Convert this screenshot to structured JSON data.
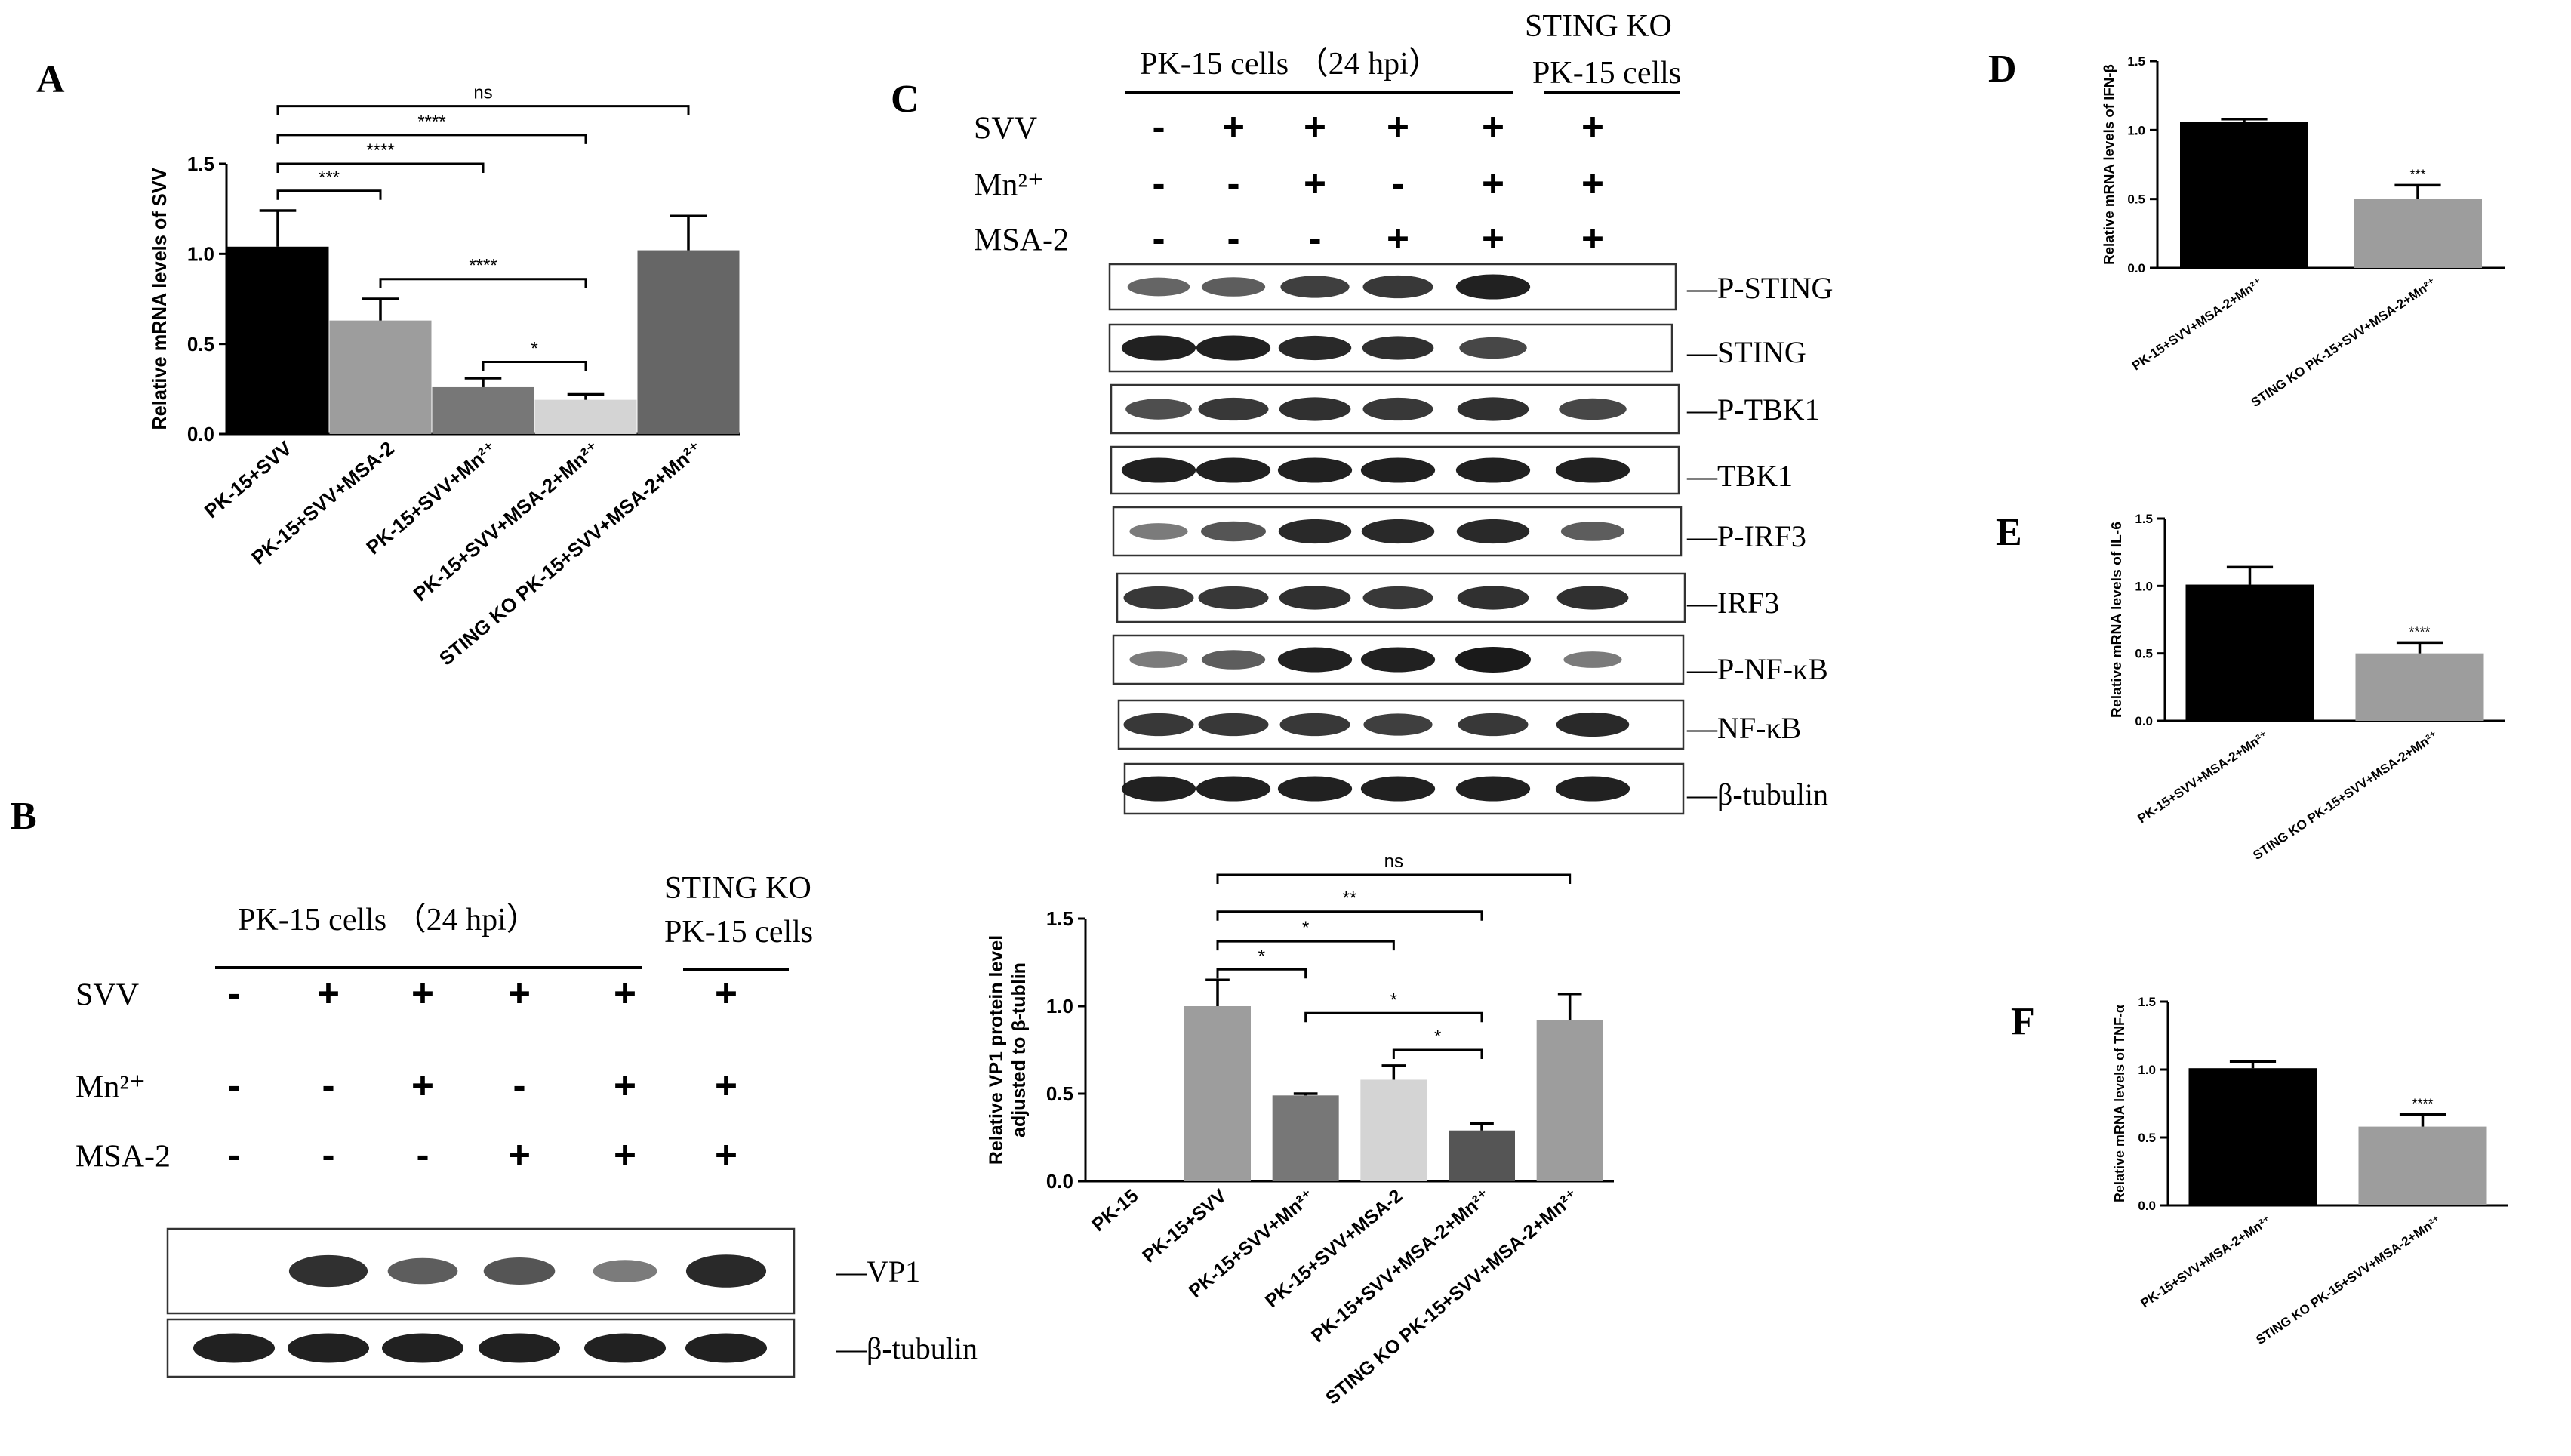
{
  "panels": {
    "A": "A",
    "B": "B",
    "C": "C",
    "D": "D",
    "E": "E",
    "F": "F"
  },
  "colors": {
    "black_bar": "#000000",
    "gray_bar": "#9d9d9d",
    "dark_gray_bar": "#777777",
    "light_gray_bar": "#d4d4d4",
    "darker_gray_bar": "#666666",
    "band": "#1a1a1a"
  },
  "blot_common": {
    "header": "PK-15 cells （24 hpi）",
    "ko_header_line1": "STING KO",
    "ko_header_line2": "PK-15 cells",
    "row_labels": [
      "SVV",
      "Mn²⁺",
      "MSA-2"
    ],
    "signs": [
      [
        "-",
        "+",
        "+",
        "+",
        "+",
        "+"
      ],
      [
        "-",
        "-",
        "+",
        "-",
        "+",
        "+"
      ],
      [
        "-",
        "-",
        "-",
        "+",
        "+",
        "+"
      ]
    ]
  },
  "blot_B": {
    "bands": [
      "—VP1",
      "—β-tubulin"
    ],
    "intensity": [
      [
        0.0,
        0.85,
        0.55,
        0.6,
        0.35,
        0.9
      ],
      [
        0.95,
        0.95,
        0.95,
        0.95,
        0.95,
        0.95
      ]
    ]
  },
  "blot_C": {
    "bands": [
      "—P-STING",
      "—STING",
      "—P-TBK1",
      "—TBK1",
      "—P-IRF3",
      "—IRF3",
      "—P-NF-κB",
      "—NF-κB",
      "—β-tubulin"
    ],
    "intensity": [
      [
        0.5,
        0.55,
        0.75,
        0.8,
        0.95,
        0.0
      ],
      [
        0.95,
        0.95,
        0.9,
        0.85,
        0.7,
        0.0
      ],
      [
        0.65,
        0.8,
        0.85,
        0.8,
        0.85,
        0.7
      ],
      [
        0.95,
        0.95,
        0.95,
        0.95,
        0.95,
        0.95
      ],
      [
        0.35,
        0.6,
        0.9,
        0.9,
        0.9,
        0.55
      ],
      [
        0.8,
        0.8,
        0.85,
        0.8,
        0.85,
        0.85
      ],
      [
        0.35,
        0.55,
        0.95,
        0.95,
        1.0,
        0.35
      ],
      [
        0.8,
        0.8,
        0.8,
        0.75,
        0.8,
        0.9
      ],
      [
        0.95,
        0.95,
        0.95,
        0.95,
        0.95,
        0.95
      ]
    ]
  },
  "chart_data": [
    {
      "id": "A",
      "type": "bar",
      "ylabel": "Relative mRNA levels of SVV",
      "categories": [
        "PK-15+SVV",
        "PK-15+SVV+MSA-2",
        "PK-15+SVV+Mn²⁺",
        "PK-15+SVV+MSA-2+Mn²⁺",
        "STING KO PK-15+SVV+MSA-2+Mn²⁺"
      ],
      "values": [
        1.04,
        0.63,
        0.26,
        0.19,
        1.02
      ],
      "errors": [
        0.2,
        0.12,
        0.05,
        0.03,
        0.19
      ],
      "colors": [
        "#000000",
        "#9d9d9d",
        "#777777",
        "#d4d4d4",
        "#666666"
      ],
      "ylim": [
        0,
        1.5
      ],
      "yticks": [
        "0.0",
        "0.5",
        "1.0",
        "1.5"
      ],
      "significance": [
        {
          "from": 0,
          "to": 4,
          "label": "ns",
          "level": 1.82
        },
        {
          "from": 0,
          "to": 3,
          "label": "****",
          "level": 1.66
        },
        {
          "from": 0,
          "to": 2,
          "label": "****",
          "level": 1.5
        },
        {
          "from": 0,
          "to": 1,
          "label": "***",
          "level": 1.35
        },
        {
          "from": 1,
          "to": 3,
          "label": "****",
          "level": 0.86
        },
        {
          "from": 2,
          "to": 3,
          "label": "*",
          "level": 0.4
        }
      ]
    },
    {
      "id": "C",
      "type": "bar",
      "ylabel_line1": "Relative VP1 protein level",
      "ylabel_line2": "adjusted to β-tublin",
      "categories": [
        "PK-15",
        "PK-15+SVV",
        "PK-15+SVV+Mn²⁺",
        "PK-15+SVV+MSA-2",
        "PK-15+SVV+MSA-2+Mn²⁺",
        "STING KO PK-15+SVV+MSA-2+Mn²⁺"
      ],
      "values": [
        0.0,
        1.0,
        0.49,
        0.58,
        0.29,
        0.92
      ],
      "errors": [
        0.0,
        0.15,
        0.01,
        0.08,
        0.04,
        0.15
      ],
      "colors": [
        "#9d9d9d",
        "#9d9d9d",
        "#777777",
        "#d4d4d4",
        "#555555",
        "#9d9d9d"
      ],
      "ylim": [
        0,
        1.5
      ],
      "yticks": [
        "0.0",
        "0.5",
        "1.0",
        "1.5"
      ],
      "significance": [
        {
          "from": 1,
          "to": 5,
          "label": "ns",
          "level": 1.75
        },
        {
          "from": 1,
          "to": 4,
          "label": "**",
          "level": 1.54
        },
        {
          "from": 1,
          "to": 3,
          "label": "*",
          "level": 1.37
        },
        {
          "from": 1,
          "to": 2,
          "label": "*",
          "level": 1.21
        },
        {
          "from": 2,
          "to": 4,
          "label": "*",
          "level": 0.96
        },
        {
          "from": 3,
          "to": 4,
          "label": "*",
          "level": 0.75
        }
      ]
    },
    {
      "id": "D",
      "type": "bar",
      "ylabel": "Relative mRNA levels of IFN-β",
      "categories": [
        "PK-15+SVV+MSA-2+Mn²⁺",
        "STING KO PK-15+SVV+MSA-2+Mn²⁺"
      ],
      "values": [
        1.06,
        0.5
      ],
      "errors": [
        0.02,
        0.1
      ],
      "colors": [
        "#000000",
        "#9d9d9d"
      ],
      "ylim": [
        0,
        1.5
      ],
      "yticks": [
        "0.0",
        "0.5",
        "1.0",
        "1.5"
      ],
      "stars": [
        "",
        "***"
      ]
    },
    {
      "id": "E",
      "type": "bar",
      "ylabel": "Relative mRNA levels of IL-6",
      "categories": [
        "PK-15+SVV+MSA-2+Mn²⁺",
        "STING KO PK-15+SVV+MSA-2+Mn²⁺"
      ],
      "values": [
        1.01,
        0.5
      ],
      "errors": [
        0.13,
        0.08
      ],
      "colors": [
        "#000000",
        "#9d9d9d"
      ],
      "ylim": [
        0,
        1.5
      ],
      "yticks": [
        "0.0",
        "0.5",
        "1.0",
        "1.5"
      ],
      "stars": [
        "",
        "****"
      ]
    },
    {
      "id": "F",
      "type": "bar",
      "ylabel": "Relative mRNA levels of TNF-α",
      "categories": [
        "PK-15+SVV+MSA-2+Mn²⁺",
        "STING KO PK-15+SVV+MSA-2+Mn²⁺"
      ],
      "values": [
        1.01,
        0.58
      ],
      "errors": [
        0.05,
        0.09
      ],
      "colors": [
        "#000000",
        "#9d9d9d"
      ],
      "ylim": [
        0,
        1.5
      ],
      "yticks": [
        "0.0",
        "0.5",
        "1.0",
        "1.5"
      ],
      "stars": [
        "",
        "****"
      ]
    }
  ]
}
